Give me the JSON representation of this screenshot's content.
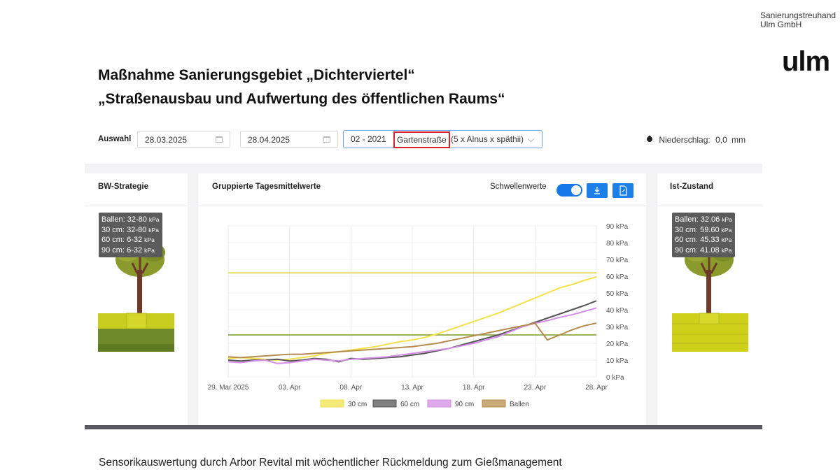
{
  "org": {
    "line1": "Sanierungstreuhand",
    "line2": "Ulm GmbH",
    "logo": "ulm"
  },
  "title": {
    "line1": "Maßnahme Sanierungsgebiet „Dichterviertel“",
    "line2": "„Straßenausbau und Aufwertung des öffentlichen Raums“"
  },
  "footer": "Sensorikauswertung durch Arbor Revital mit wöchentlicher Rückmeldung zum Gießmanagement",
  "app": {
    "auswahl_label": "Auswahl",
    "date_from": "28.03.2025",
    "date_to": "28.04.2025",
    "tree_select": {
      "prefix": "02 - 2021",
      "street": "Gartenstraße",
      "suffix": "(5 x Alnus x späthii)"
    },
    "rain": {
      "label": "Niederschlag:",
      "value": "0,0",
      "unit": "mm",
      "icon": "drop-icon"
    },
    "left_panel": {
      "title": "BW-Strategie",
      "tooltip": [
        {
          "label": "Ballen:",
          "value": "32-80",
          "unit": "kPa"
        },
        {
          "label": "30 cm:",
          "value": "32-80",
          "unit": "kPa"
        },
        {
          "label": "60 cm:",
          "value": "6-32",
          "unit": "kPa"
        },
        {
          "label": "90 cm:",
          "value": "6-32",
          "unit": "kPa"
        }
      ]
    },
    "chart_panel": {
      "title": "Gruppierte Tagesmittelwerte",
      "threshold_label": "Schwellenwerte",
      "threshold_on": true,
      "download_icon": "download-icon",
      "pdf_icon": "pdf-icon"
    },
    "right_panel": {
      "title": "Ist-Zustand",
      "tooltip": [
        {
          "label": "Ballen:",
          "value": "32.06",
          "unit": "kPa"
        },
        {
          "label": "30 cm:",
          "value": "59.60",
          "unit": "kPa"
        },
        {
          "label": "60 cm:",
          "value": "45.33",
          "unit": "kPa"
        },
        {
          "label": "90 cm:",
          "value": "41.08",
          "unit": "kPa"
        }
      ]
    },
    "colors": {
      "accent": "#1d7fe8",
      "highlight": "#d8232a",
      "tree_foliage": "#8a9a2c",
      "soil_top": "#c8cc1f",
      "soil_bottom": "#6e8a2a"
    }
  },
  "chart_data": {
    "type": "line",
    "title": "Gruppierte Tagesmittelwerte",
    "xlabel": "",
    "ylabel": "",
    "x": [
      "29. Mar 2025",
      "30. Mar",
      "31. Mar",
      "01. Apr",
      "02. Apr",
      "03. Apr",
      "04. Apr",
      "05. Apr",
      "06. Apr",
      "07. Apr",
      "08. Apr",
      "09. Apr",
      "10. Apr",
      "11. Apr",
      "12. Apr",
      "13. Apr",
      "14. Apr",
      "15. Apr",
      "16. Apr",
      "17. Apr",
      "18. Apr",
      "19. Apr",
      "20. Apr",
      "21. Apr",
      "22. Apr",
      "23. Apr",
      "24. Apr",
      "25. Apr",
      "26. Apr",
      "27. Apr",
      "28. Apr"
    ],
    "xticks": [
      "29. Mar 2025",
      "03. Apr",
      "08. Apr",
      "13. Apr",
      "18. Apr",
      "23. Apr",
      "28. Apr"
    ],
    "yticks": [
      "0 kPa",
      "10 kPa",
      "20 kPa",
      "30 kPa",
      "40 kPa",
      "50 kPa",
      "60 kPa",
      "70 kPa",
      "80 kPa",
      "90 kPa"
    ],
    "ylim": [
      0,
      90
    ],
    "y_unit": "kPa",
    "legend_position": "bottom",
    "grid": true,
    "thresholds": [
      {
        "value": 62,
        "color": "#e3d93c"
      },
      {
        "value": 25,
        "color": "#7a9a25"
      }
    ],
    "series": [
      {
        "name": "30 cm",
        "color": "#f2e14c",
        "values": [
          11,
          11.5,
          11,
          10.5,
          10,
          10.5,
          11.5,
          12.5,
          14,
          15,
          16,
          17,
          18,
          19.5,
          21,
          22,
          23.5,
          25.5,
          28,
          30.5,
          33,
          35.5,
          38,
          41,
          44,
          47,
          50,
          53,
          55,
          57.5,
          59.6
        ]
      },
      {
        "name": "60 cm",
        "color": "#555555",
        "values": [
          10,
          9.5,
          10,
          10,
          10.5,
          9.5,
          10,
          11,
          10.5,
          9,
          11,
          10.5,
          11,
          11.5,
          12,
          13,
          14,
          15.5,
          17,
          19,
          21,
          23,
          25,
          27.5,
          30,
          32.5,
          35,
          37.5,
          40,
          42.5,
          45.33
        ]
      },
      {
        "name": "90 cm",
        "color": "#d48ee6",
        "values": [
          9,
          8.5,
          9.5,
          10,
          8,
          8.5,
          9.5,
          10.5,
          10,
          9.5,
          10.5,
          11,
          11.5,
          12,
          13,
          14,
          15,
          16,
          17,
          18.5,
          20,
          22,
          24,
          27,
          30,
          32,
          33.5,
          35.5,
          37,
          39,
          41.08
        ]
      },
      {
        "name": "Ballen",
        "color": "#b78b4e",
        "values": [
          12,
          11.5,
          12,
          12.5,
          13,
          13.5,
          13.5,
          14,
          14.5,
          15,
          15.5,
          16,
          16.5,
          17,
          17.5,
          18,
          19,
          20,
          21.5,
          23,
          24.5,
          26,
          27.5,
          29,
          30.5,
          32,
          22,
          25,
          28,
          30.5,
          32.06
        ]
      }
    ]
  }
}
